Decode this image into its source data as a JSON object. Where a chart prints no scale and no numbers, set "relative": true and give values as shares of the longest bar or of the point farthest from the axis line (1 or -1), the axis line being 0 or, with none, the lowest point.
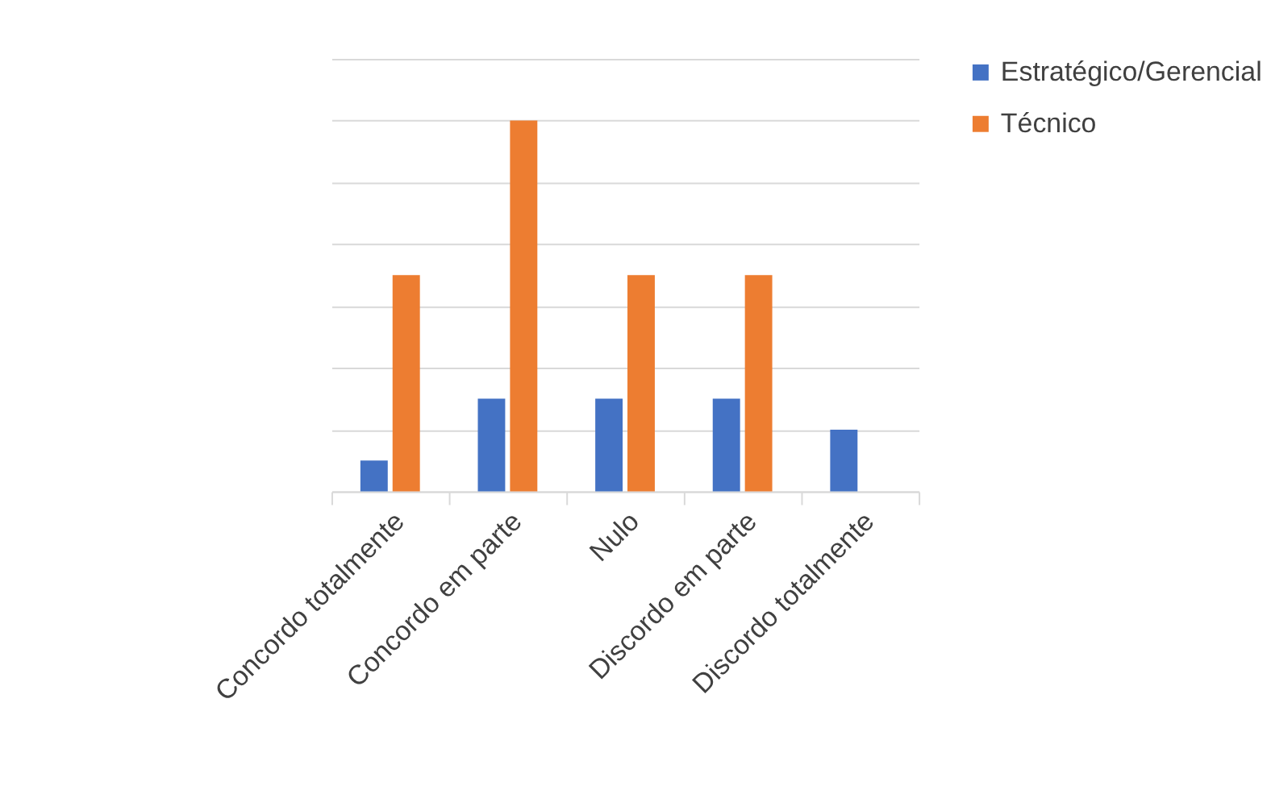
{
  "chart_data": {
    "type": "bar",
    "relative": true,
    "categories": [
      "Concordo totalmente",
      "Concordo em parte",
      "Nulo",
      "Discordo em parte",
      "Discordo totalmente"
    ],
    "series": [
      {
        "name": "Estratégico/Gerencial",
        "color": "#4472c4",
        "values": [
          0.0833,
          0.25,
          0.25,
          0.25,
          0.1667
        ]
      },
      {
        "name": "Técnico",
        "color": "#ed7d31",
        "values": [
          0.5833,
          1,
          0.5833,
          0.5833,
          0
        ]
      }
    ],
    "grid": "y",
    "legend": "right"
  }
}
